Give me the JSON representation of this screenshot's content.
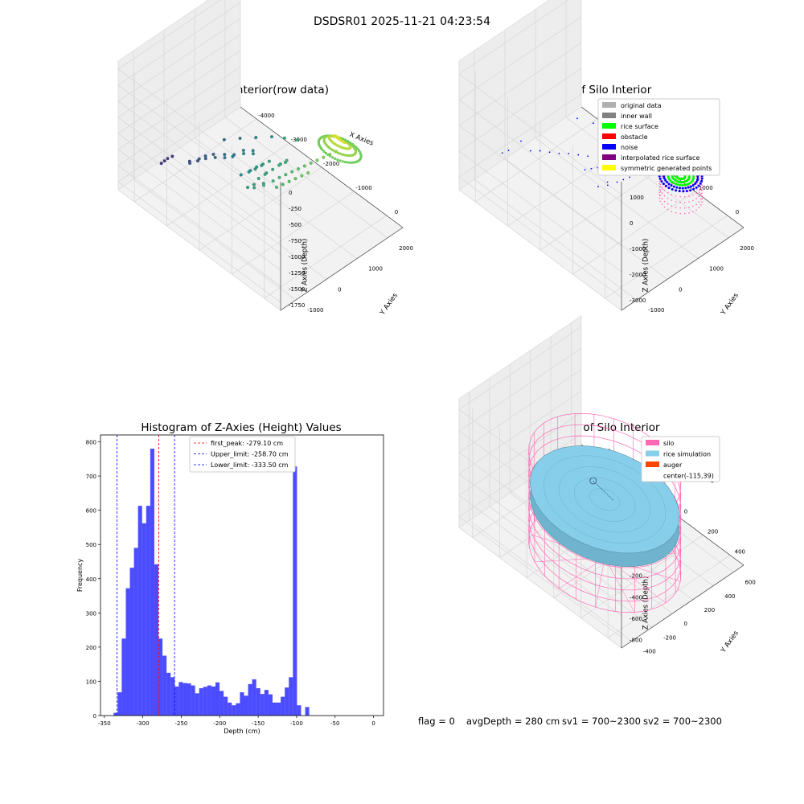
{
  "suptitle": "DSDSR01 2025-11-21 04:23:54",
  "status_line": {
    "flag": "flag = 0",
    "avg_depth": "avgDepth = 280 cm",
    "sv1": "sv1 = 700~2300",
    "sv2": "sv2 = 700~2300"
  },
  "colors": {
    "hist_bar": "#0000ff",
    "first_peak": "#ff0000",
    "limit_lines": "#0000ff",
    "pane": "#f2f2f2",
    "grid": "#d9d9d9",
    "silo": "#ff69b4",
    "rice": "#87ceeb",
    "auger": "#ff4500"
  },
  "chart_data": [
    {
      "id": "raw",
      "type": "scatter3d",
      "title": "3D Plot of Silo Interior(row data)",
      "xlabel": "X Axies",
      "ylabel": "Y Axies",
      "zlabel": "Z Axies (Depth)",
      "xticks": [
        "-4000",
        "-3000",
        "-2000",
        "-1000",
        "0"
      ],
      "yticks": [
        "-1000",
        "0",
        "1000",
        "2000"
      ],
      "zticks": [
        "0",
        "-250",
        "-500",
        "-750",
        "-1000",
        "-1250",
        "-1500",
        "-1750"
      ],
      "xlim": [
        -4500,
        500
      ],
      "ylim": [
        -1500,
        2500
      ],
      "zlim": [
        -1900,
        100
      ],
      "colormap": "viridis",
      "points": [
        [
          -4300,
          -300,
          -1800
        ],
        [
          -4250,
          -250,
          -1760
        ],
        [
          -4200,
          -200,
          -1720
        ],
        [
          -4150,
          -100,
          -1700
        ],
        [
          -3900,
          200,
          -1780
        ],
        [
          -3800,
          100,
          -1740
        ],
        [
          -3700,
          300,
          -1700
        ],
        [
          -3650,
          200,
          -1680
        ],
        [
          -3600,
          400,
          -1650
        ],
        [
          -3500,
          300,
          -1620
        ],
        [
          -3450,
          500,
          -1600
        ],
        [
          -3300,
          400,
          -1560
        ],
        [
          -3200,
          600,
          -1540
        ],
        [
          -3100,
          500,
          -1520
        ],
        [
          -3000,
          700,
          -1500
        ],
        [
          -2950,
          600,
          -1480
        ],
        [
          -2900,
          900,
          -1460
        ],
        [
          -2800,
          800,
          -1440
        ],
        [
          -2700,
          1000,
          -1420
        ],
        [
          -2600,
          900,
          -1400
        ],
        [
          -2600,
          500,
          -1600
        ],
        [
          -2500,
          700,
          -1560
        ],
        [
          -2450,
          600,
          -1530
        ],
        [
          -2400,
          800,
          -1500
        ],
        [
          -2350,
          700,
          -1480
        ],
        [
          -2300,
          900,
          -1450
        ],
        [
          -2250,
          800,
          -1420
        ],
        [
          -2200,
          1000,
          -1400
        ],
        [
          -2150,
          600,
          -1520
        ],
        [
          -2100,
          800,
          -1480
        ],
        [
          -2050,
          700,
          -1450
        ],
        [
          -2000,
          900,
          -1420
        ],
        [
          -1950,
          1100,
          -1380
        ],
        [
          -1900,
          1000,
          -1350
        ],
        [
          -1850,
          1200,
          -1320
        ],
        [
          -1800,
          1100,
          -1300
        ],
        [
          -2300,
          400,
          -1650
        ],
        [
          -2200,
          500,
          -1600
        ],
        [
          -2100,
          400,
          -1580
        ],
        [
          -2000,
          600,
          -1540
        ],
        [
          -1900,
          500,
          -1500
        ],
        [
          -1800,
          700,
          -1460
        ],
        [
          -1700,
          800,
          -1400
        ],
        [
          -1600,
          900,
          -1350
        ],
        [
          -1500,
          1000,
          -1300
        ],
        [
          -1400,
          1100,
          -1250
        ],
        [
          -1300,
          1200,
          -1200
        ],
        [
          -1200,
          1300,
          -1150
        ],
        [
          -1100,
          1400,
          -1100
        ],
        [
          -1000,
          1500,
          -1050
        ],
        [
          -900,
          1600,
          -1000
        ],
        [
          -800,
          1700,
          -950
        ],
        [
          -1600,
          600,
          -1450
        ],
        [
          -1500,
          700,
          -1400
        ],
        [
          -1400,
          800,
          -1350
        ],
        [
          -1300,
          900,
          -1300
        ],
        [
          -1200,
          1000,
          -1250
        ],
        [
          -1100,
          1100,
          -1200
        ],
        [
          -3400,
          800,
          -1450
        ],
        [
          -3100,
          1000,
          -1380
        ],
        [
          -2800,
          1200,
          -1320
        ],
        [
          -2500,
          1400,
          -1260
        ],
        [
          -2200,
          1500,
          -1200
        ],
        [
          -1900,
          1600,
          -1150
        ]
      ],
      "surface_blob": {
        "center": [
          -450,
          1450,
          -700
        ],
        "radius": [
          520,
          420,
          260
        ]
      }
    },
    {
      "id": "classify",
      "type": "scatter3d",
      "title": "3D classify of Silo Interior",
      "xlabel": "X Axies",
      "ylabel": "Y Axies",
      "zlabel": "Z Axies (Depth)",
      "xticks": [
        "-4000",
        "-3000",
        "-2000",
        "-1000",
        "0"
      ],
      "yticks": [
        "-1000",
        "0",
        "1000",
        "2000"
      ],
      "zticks": [
        "1000",
        "0",
        "-1000",
        "-2000",
        "-3000"
      ],
      "xlim": [
        -4500,
        500
      ],
      "ylim": [
        -1500,
        2500
      ],
      "zlim": [
        -3300,
        1300
      ],
      "legend_location": "upper right",
      "legend": [
        {
          "label": "original data",
          "color": "#b0b0b0"
        },
        {
          "label": "inner wall",
          "color": "#808080"
        },
        {
          "label": "rice surface",
          "color": "#00ff00"
        },
        {
          "label": "obstacle",
          "color": "#ff0000"
        },
        {
          "label": "noise",
          "color": "#0000ff"
        },
        {
          "label": "interpolated rice surface",
          "color": "#800080"
        },
        {
          "label": "symmetric generated points",
          "color": "#ffff00"
        }
      ],
      "noise_points": [
        [
          -4300,
          -300,
          -2700
        ],
        [
          -4200,
          -200,
          -2600
        ],
        [
          -4100,
          100,
          -2400
        ],
        [
          -3900,
          200,
          -2650
        ],
        [
          -3700,
          300,
          -2550
        ],
        [
          -3500,
          400,
          -2500
        ],
        [
          -3300,
          500,
          -2450
        ],
        [
          -3100,
          600,
          -2350
        ],
        [
          -2900,
          700,
          -2300
        ],
        [
          -2700,
          800,
          -2250
        ],
        [
          -2600,
          600,
          -2500
        ],
        [
          -2500,
          700,
          -2450
        ],
        [
          -2400,
          800,
          -2400
        ],
        [
          -2300,
          900,
          -2350
        ],
        [
          -2200,
          1000,
          -2300
        ],
        [
          -2100,
          500,
          -2600
        ],
        [
          -2000,
          700,
          -2500
        ],
        [
          -1900,
          600,
          -2450
        ],
        [
          -1800,
          800,
          -2400
        ],
        [
          -1700,
          900,
          -2300
        ],
        [
          -1600,
          1000,
          -2200
        ],
        [
          -1500,
          1100,
          -2100
        ],
        [
          -1400,
          1200,
          -2000
        ],
        [
          -1300,
          1300,
          -1900
        ],
        [
          -2300,
          1600,
          -1500
        ],
        [
          -2100,
          1700,
          -1400
        ],
        [
          -1900,
          1800,
          -1300
        ],
        [
          -1700,
          1900,
          -1200
        ],
        [
          -1500,
          2000,
          -1100
        ],
        [
          -3400,
          1200,
          -1800
        ],
        [
          -3000,
          1300,
          -1700
        ],
        [
          -2700,
          1500,
          -1600
        ]
      ],
      "silo_center": [
        -450,
        1450
      ],
      "silo_radius": 480,
      "silo_z": [
        -2300,
        -900
      ]
    },
    {
      "id": "histogram",
      "type": "bar",
      "title": "Histogram of Z-Axies (Height) Values",
      "xlabel": "Depth (cm)",
      "ylabel": "Frequency",
      "xlim": [
        -355,
        13
      ],
      "ylim": [
        0,
        820
      ],
      "xticks": [
        -350,
        -300,
        -250,
        -200,
        -150,
        -100,
        -50,
        0
      ],
      "yticks": [
        0,
        100,
        200,
        300,
        400,
        500,
        600,
        700,
        800
      ],
      "bin_start": -338,
      "bin_width": 5.3,
      "values": [
        8,
        68,
        225,
        372,
        432,
        490,
        613,
        562,
        613,
        780,
        442,
        225,
        175,
        125,
        112,
        85,
        98,
        95,
        94,
        88,
        65,
        80,
        84,
        88,
        85,
        97,
        72,
        55,
        38,
        30,
        36,
        68,
        58,
        92,
        106,
        80,
        63,
        75,
        62,
        38,
        38,
        55,
        82,
        112,
        728,
        30,
        0,
        25
      ],
      "vlines": [
        {
          "x": -279.1,
          "color": "#ff0000",
          "label": "first_peak: -279.10 cm"
        },
        {
          "x": -258.7,
          "color": "#0000ff",
          "label": "Upper_limit: -258.70 cm"
        },
        {
          "x": -333.5,
          "color": "#0000ff",
          "label": "Lower_limit: -333.50 cm"
        }
      ],
      "legend_location": "upper center"
    },
    {
      "id": "simulation",
      "type": "surface3d",
      "title": "3D simulation of Silo Interior",
      "xlabel": "X Axies",
      "ylabel": "Y Axies",
      "zlabel": "Z Axies (Depth)",
      "xticks": [
        "-600",
        "-400",
        "-200",
        "0",
        "200",
        "400"
      ],
      "yticks": [
        "-400",
        "-200",
        "0",
        "200",
        "400",
        "600"
      ],
      "zticks": [
        "200",
        "0",
        "-200",
        "-400",
        "-600",
        "-800"
      ],
      "xlim": [
        -700,
        500
      ],
      "ylim": [
        -500,
        700
      ],
      "zlim": [
        -850,
        300
      ],
      "silo_radius": 450,
      "silo_z": [
        -800,
        0
      ],
      "rice_depth": -280,
      "legend_location": "upper right",
      "legend": [
        {
          "label": "silo",
          "color": "#ff69b4"
        },
        {
          "label": "rice simulation",
          "color": "#87ceeb"
        },
        {
          "label": "auger",
          "color": "#ff4500"
        },
        {
          "label": "center(-115,39)",
          "color": "none"
        }
      ],
      "center": [
        -115,
        39
      ]
    }
  ]
}
